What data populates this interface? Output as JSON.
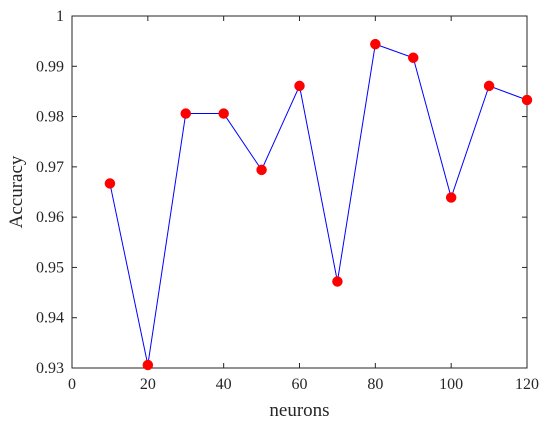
{
  "chart_data": {
    "type": "line",
    "title": "",
    "xlabel": "neurons",
    "ylabel": "Accuracy",
    "xlim": [
      0,
      120
    ],
    "ylim": [
      0.93,
      1.0
    ],
    "x_ticks": [
      0,
      20,
      40,
      60,
      80,
      100,
      120
    ],
    "y_ticks": [
      0.93,
      0.94,
      0.95,
      0.96,
      0.97,
      0.98,
      0.99,
      1
    ],
    "x_tick_labels": [
      "0",
      "20",
      "40",
      "60",
      "80",
      "100",
      "120"
    ],
    "y_tick_labels": [
      "0.93",
      "0.94",
      "0.95",
      "0.96",
      "0.97",
      "0.98",
      "0.99",
      "1"
    ],
    "grid": false,
    "legend": "none",
    "series": [
      {
        "x": [
          10,
          20,
          30,
          40,
          50,
          60,
          70,
          80,
          90,
          100,
          110,
          120
        ],
        "values": [
          0.9667,
          0.9306,
          0.9806,
          0.9806,
          0.9694,
          0.9861,
          0.9472,
          0.9944,
          0.9917,
          0.9639,
          0.9861,
          0.9833
        ],
        "line_color": "#0000ff",
        "marker_color": "#ff0000"
      }
    ]
  }
}
